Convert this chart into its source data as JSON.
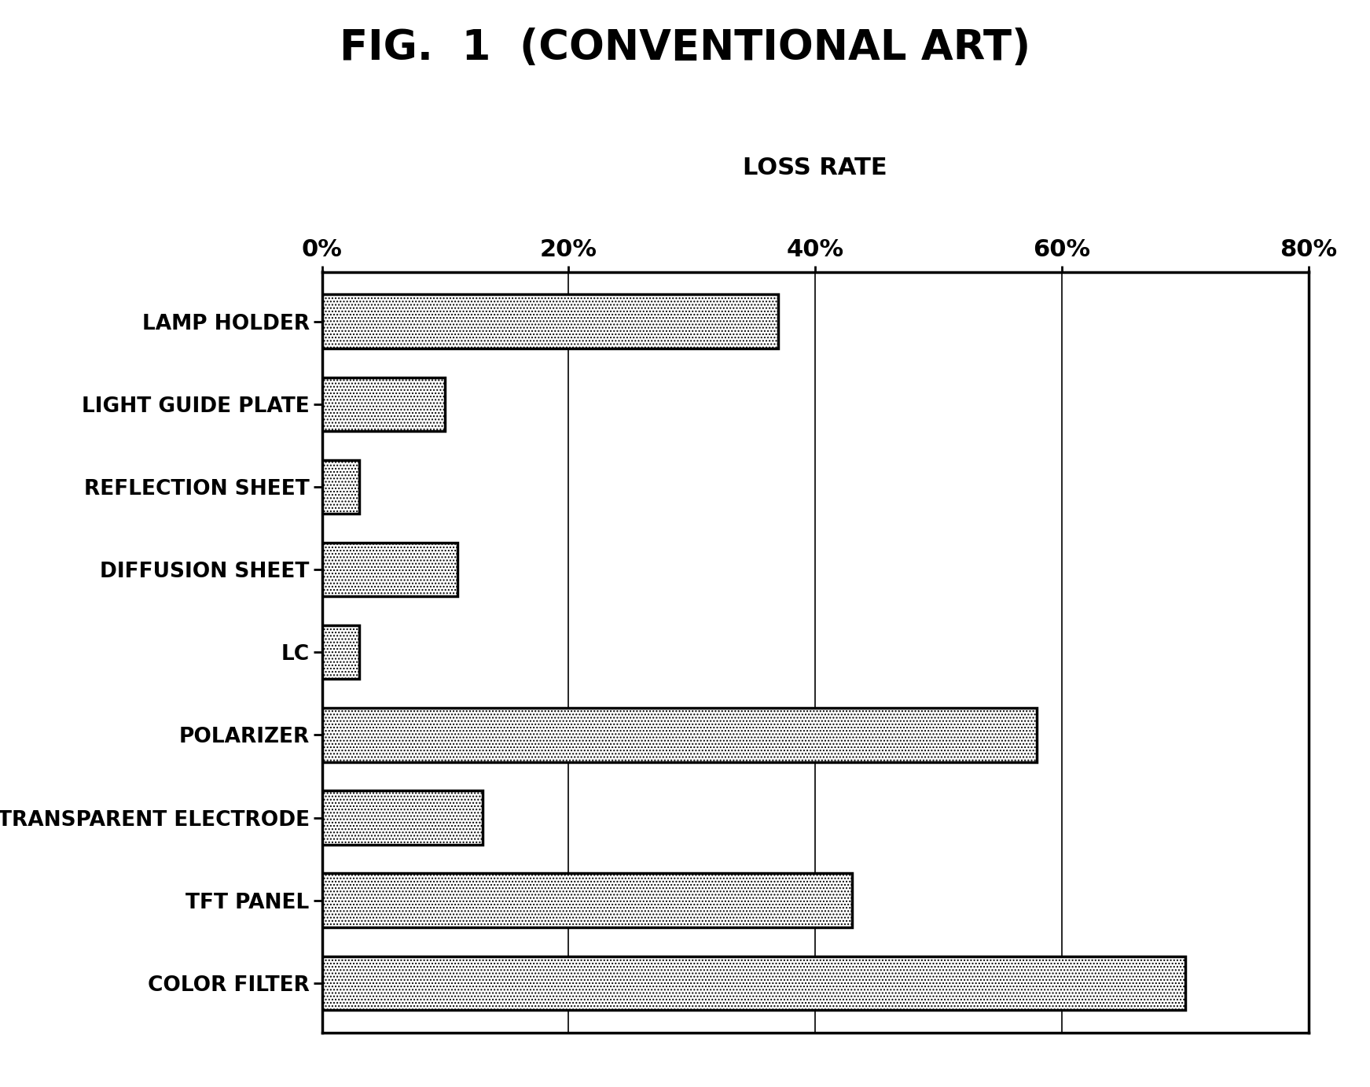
{
  "title": "FIG.  1  (CONVENTIONAL ART)",
  "xlabel": "LOSS RATE",
  "categories": [
    "COLOR FILTER",
    "TFT PANEL",
    "TRANSPARENT ELECTRODE",
    "POLARIZER",
    "LC",
    "DIFFUSION SHEET",
    "REFLECTION SHEET",
    "LIGHT GUIDE PLATE",
    "LAMP HOLDER"
  ],
  "values": [
    70,
    43,
    13,
    58,
    3,
    11,
    3,
    10,
    37
  ],
  "xlim": [
    0,
    80
  ],
  "xticks": [
    0,
    20,
    40,
    60,
    80
  ],
  "xtick_labels": [
    "0%",
    "20%",
    "40%",
    "60%",
    "80%"
  ],
  "bar_color": "#ffffff",
  "bar_hatch": "....",
  "bar_edgecolor": "#000000",
  "background_color": "#ffffff",
  "title_fontsize": 38,
  "label_fontsize": 19,
  "tick_fontsize": 22,
  "xlabel_fontsize": 22
}
